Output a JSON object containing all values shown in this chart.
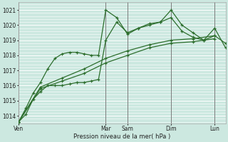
{
  "xlabel": "Pression niveau de la mer( hPa )",
  "bg_color": "#cce8e0",
  "grid_color": "#ffffff",
  "line_color": "#2d6e2d",
  "ylim": [
    1013.5,
    1021.5
  ],
  "yticks": [
    1014,
    1015,
    1016,
    1017,
    1018,
    1019,
    1020,
    1021
  ],
  "day_labels": [
    "Ven",
    "Mar",
    "Sam",
    "Dim",
    "Lun"
  ],
  "day_positions": [
    0,
    24,
    30,
    42,
    54
  ],
  "xlim": [
    0,
    57
  ],
  "series1_x": [
    0,
    2,
    4,
    6,
    8,
    10,
    12,
    14,
    16,
    18,
    20,
    22,
    24,
    27,
    30,
    33,
    36,
    39,
    42,
    45,
    48,
    51,
    54,
    57
  ],
  "series1_y": [
    1013.6,
    1014.1,
    1015.1,
    1015.6,
    1016.0,
    1016.0,
    1016.0,
    1016.1,
    1016.2,
    1016.2,
    1016.3,
    1016.4,
    1019.0,
    1020.2,
    1019.5,
    1019.8,
    1020.0,
    1020.2,
    1020.5,
    1019.6,
    1019.2,
    1019.0,
    1019.3,
    1018.8
  ],
  "series2_x": [
    0,
    2,
    4,
    6,
    8,
    10,
    12,
    14,
    16,
    18,
    20,
    22,
    24,
    27,
    30,
    33,
    36,
    39,
    42,
    45,
    48,
    51,
    54,
    57
  ],
  "series2_y": [
    1013.6,
    1014.5,
    1015.5,
    1016.2,
    1017.1,
    1017.8,
    1018.1,
    1018.2,
    1018.2,
    1018.1,
    1018.0,
    1018.0,
    1021.0,
    1020.5,
    1019.4,
    1019.8,
    1020.1,
    1020.2,
    1021.0,
    1020.0,
    1019.5,
    1019.0,
    1019.8,
    1018.5
  ],
  "series3_x": [
    0,
    6,
    12,
    18,
    24,
    30,
    36,
    42,
    48,
    54
  ],
  "series3_y": [
    1013.6,
    1015.8,
    1016.3,
    1016.8,
    1017.5,
    1018.0,
    1018.5,
    1018.8,
    1018.9,
    1019.1
  ],
  "series4_x": [
    0,
    6,
    12,
    18,
    24,
    30,
    36,
    42,
    48,
    54
  ],
  "series4_y": [
    1013.6,
    1015.9,
    1016.5,
    1017.1,
    1017.8,
    1018.3,
    1018.7,
    1019.0,
    1019.1,
    1019.3
  ]
}
